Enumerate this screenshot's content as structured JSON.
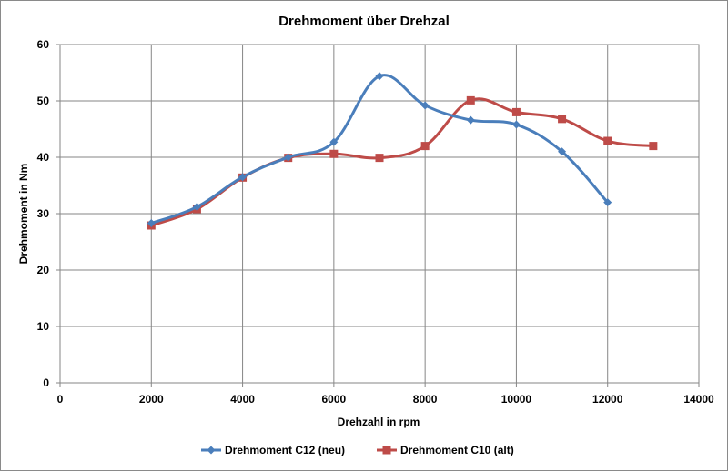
{
  "chart_data": {
    "type": "line",
    "title": "Drehmoment über Drehzal",
    "xlabel": "Drehzahl in rpm",
    "ylabel": "Drehmoment in Nm",
    "xlim": [
      0,
      14000
    ],
    "ylim": [
      0,
      60
    ],
    "x_ticks": [
      0,
      2000,
      4000,
      6000,
      8000,
      10000,
      12000,
      14000
    ],
    "y_ticks": [
      0,
      10,
      20,
      30,
      40,
      50,
      60
    ],
    "grid": true,
    "legend_position": "bottom",
    "series": [
      {
        "name": "Drehmoment C12 (neu)",
        "color": "#4a7ebb",
        "marker": "diamond",
        "x": [
          2000,
          3000,
          4000,
          5000,
          6000,
          7000,
          8000,
          9000,
          10000,
          11000,
          12000
        ],
        "y": [
          28.3,
          31.2,
          36.5,
          40.0,
          42.7,
          54.4,
          49.2,
          46.6,
          45.8,
          41.0,
          32.0
        ]
      },
      {
        "name": "Drehmoment C10 (alt)",
        "color": "#be4b48",
        "marker": "square",
        "x": [
          2000,
          3000,
          4000,
          5000,
          6000,
          7000,
          8000,
          9000,
          10000,
          11000,
          12000,
          13000
        ],
        "y": [
          27.9,
          30.8,
          36.4,
          39.9,
          40.6,
          39.9,
          42.0,
          50.1,
          48.0,
          46.8,
          42.9,
          42.0
        ]
      }
    ]
  }
}
